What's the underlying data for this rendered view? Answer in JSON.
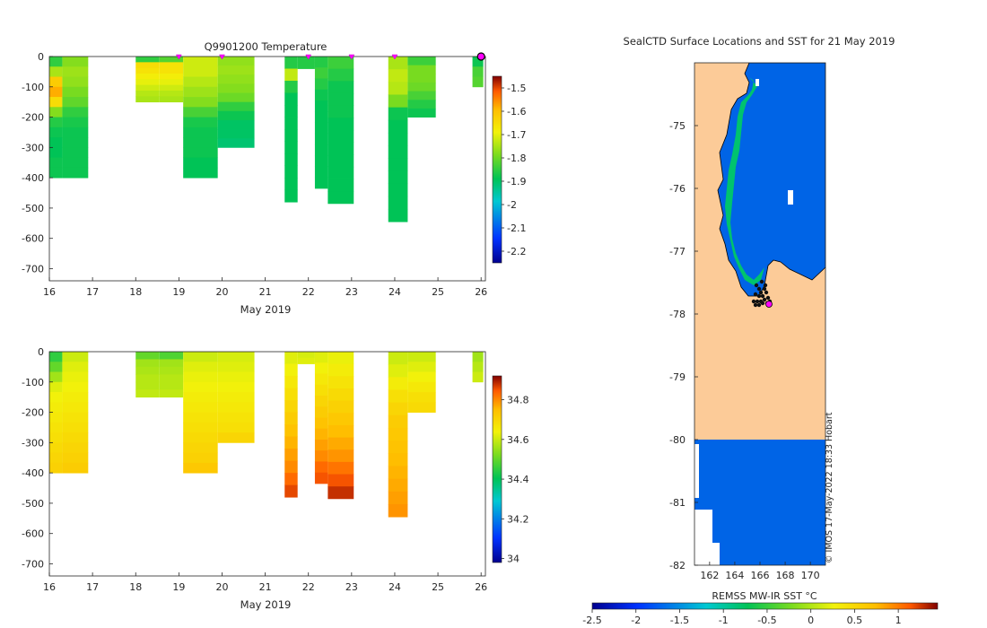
{
  "chart_data": [
    {
      "type": "heatmap",
      "title": "Q9901200  Temperature",
      "xlabel": "May 2019",
      "ylabel": "",
      "x_ticks": [
        16,
        17,
        18,
        19,
        20,
        21,
        22,
        23,
        24,
        25,
        26
      ],
      "y_ticks": [
        0,
        -100,
        -200,
        -300,
        -400,
        -500,
        -600,
        -700
      ],
      "xlim": [
        16,
        26.1
      ],
      "ylim": [
        -740,
        0
      ],
      "colorbar": {
        "ticks": [
          "-1.5",
          "-1.6",
          "-1.7",
          "-1.8",
          "-1.9",
          "-2",
          "-2.1",
          "-2.2"
        ],
        "range": [
          -2.25,
          -1.45
        ]
      },
      "profile_markers": [
        19,
        20,
        22,
        23,
        24
      ],
      "last_profile_marker": 26,
      "profiles": [
        {
          "x0": 16.0,
          "x1": 16.3,
          "depth": 400,
          "values": [
            -1.85,
            -1.75,
            -1.62,
            -1.58,
            -1.65,
            -1.78,
            -1.86,
            -1.88,
            -1.89,
            -1.89,
            -1.88,
            -1.88
          ]
        },
        {
          "x0": 16.3,
          "x1": 16.9,
          "depth": 400,
          "values": [
            -1.78,
            -1.76,
            -1.77,
            -1.79,
            -1.81,
            -1.85,
            -1.87,
            -1.88,
            -1.88,
            -1.88,
            -1.88,
            -1.88
          ]
        },
        {
          "x0": 18.0,
          "x1": 18.55,
          "depth": 150,
          "values": [
            -1.85,
            -1.65,
            -1.66,
            -1.68,
            -1.7,
            -1.72,
            -1.74,
            -1.75
          ]
        },
        {
          "x0": 18.55,
          "x1": 19.1,
          "depth": 150,
          "values": [
            -1.82,
            -1.66,
            -1.66,
            -1.68,
            -1.7,
            -1.72,
            -1.74,
            -1.75
          ]
        },
        {
          "x0": 19.1,
          "x1": 19.9,
          "depth": 400,
          "values": [
            -1.72,
            -1.72,
            -1.74,
            -1.76,
            -1.78,
            -1.83,
            -1.87,
            -1.88,
            -1.88,
            -1.88,
            -1.89,
            -1.89
          ]
        },
        {
          "x0": 19.9,
          "x1": 20.75,
          "depth": 300,
          "values": [
            -1.77,
            -1.76,
            -1.77,
            -1.78,
            -1.8,
            -1.85,
            -1.88,
            -1.9,
            -1.9,
            -1.91
          ]
        },
        {
          "x0": 21.45,
          "x1": 21.75,
          "depth": 480,
          "values": [
            -1.86,
            -1.73,
            -1.86,
            -1.89,
            -1.89,
            -1.89,
            -1.89,
            -1.89,
            -1.89,
            -1.89,
            -1.89,
            -1.89
          ]
        },
        {
          "x0": 21.75,
          "x1": 22.15,
          "depth": 40,
          "values": [
            -1.86,
            -1.86
          ]
        },
        {
          "x0": 22.15,
          "x1": 22.45,
          "depth": 435,
          "values": [
            -1.86,
            -1.84,
            -1.86,
            -1.88,
            -1.89,
            -1.89,
            -1.89,
            -1.89,
            -1.89,
            -1.89,
            -1.89,
            -1.89
          ]
        },
        {
          "x0": 22.45,
          "x1": 23.05,
          "depth": 485,
          "values": [
            -1.84,
            -1.86,
            -1.88,
            -1.88,
            -1.88,
            -1.89,
            -1.89,
            -1.89,
            -1.89,
            -1.89,
            -1.89,
            -1.89
          ]
        },
        {
          "x0": 23.85,
          "x1": 24.3,
          "depth": 545,
          "values": [
            -1.75,
            -1.73,
            -1.74,
            -1.79,
            -1.88,
            -1.89,
            -1.89,
            -1.89,
            -1.89,
            -1.89,
            -1.89,
            -1.89,
            -1.89
          ]
        },
        {
          "x0": 24.3,
          "x1": 24.95,
          "depth": 200,
          "values": [
            -1.84,
            -1.79,
            -1.79,
            -1.8,
            -1.83,
            -1.86,
            -1.88
          ]
        },
        {
          "x0": 25.8,
          "x1": 26.05,
          "depth": 100,
          "values": [
            -1.88,
            -1.83,
            -1.82
          ]
        }
      ]
    },
    {
      "type": "heatmap",
      "title": "",
      "xlabel": "May 2019",
      "ylabel": "",
      "x_ticks": [
        16,
        17,
        18,
        19,
        20,
        21,
        22,
        23,
        24,
        25,
        26
      ],
      "y_ticks": [
        0,
        -100,
        -200,
        -300,
        -400,
        -500,
        -600,
        -700
      ],
      "xlim": [
        16,
        26.1
      ],
      "ylim": [
        -740,
        0
      ],
      "colorbar": {
        "ticks": [
          "34.8",
          "34.6",
          "34.4",
          "34.2",
          "34"
        ],
        "range": [
          33.98,
          34.92
        ]
      },
      "profiles": [
        {
          "x0": 16.0,
          "x1": 16.3,
          "depth": 400,
          "values": [
            34.45,
            34.5,
            34.56,
            34.62,
            34.64,
            34.65,
            34.66,
            34.67,
            34.68,
            34.69,
            34.7,
            34.71
          ]
        },
        {
          "x0": 16.3,
          "x1": 16.9,
          "depth": 400,
          "values": [
            34.6,
            34.62,
            34.63,
            34.64,
            34.65,
            34.66,
            34.67,
            34.68,
            34.69,
            34.7,
            34.71,
            34.72
          ]
        },
        {
          "x0": 18.0,
          "x1": 18.55,
          "depth": 150,
          "values": [
            34.5,
            34.56,
            34.57,
            34.58,
            34.58,
            34.59
          ]
        },
        {
          "x0": 18.55,
          "x1": 19.1,
          "depth": 150,
          "values": [
            34.48,
            34.56,
            34.57,
            34.58,
            34.58,
            34.59
          ]
        },
        {
          "x0": 19.1,
          "x1": 19.9,
          "depth": 400,
          "values": [
            34.6,
            34.62,
            34.63,
            34.64,
            34.65,
            34.66,
            34.67,
            34.68,
            34.69,
            34.7,
            34.71,
            34.73
          ]
        },
        {
          "x0": 19.9,
          "x1": 20.75,
          "depth": 300,
          "values": [
            34.61,
            34.62,
            34.63,
            34.64,
            34.65,
            34.66,
            34.67,
            34.68,
            34.7
          ]
        },
        {
          "x0": 21.45,
          "x1": 21.75,
          "depth": 480,
          "values": [
            34.62,
            34.64,
            34.66,
            34.68,
            34.7,
            34.72,
            34.74,
            34.76,
            34.78,
            34.8,
            34.83,
            34.86
          ]
        },
        {
          "x0": 21.75,
          "x1": 22.15,
          "depth": 40,
          "values": [
            34.61,
            34.62
          ]
        },
        {
          "x0": 22.15,
          "x1": 22.45,
          "depth": 435,
          "values": [
            34.62,
            34.64,
            34.66,
            34.68,
            34.7,
            34.72,
            34.74,
            34.76,
            34.78,
            34.8,
            34.83,
            34.85
          ]
        },
        {
          "x0": 22.45,
          "x1": 23.05,
          "depth": 485,
          "values": [
            34.63,
            34.65,
            34.67,
            34.69,
            34.71,
            34.73,
            34.75,
            34.77,
            34.79,
            34.82,
            34.85,
            34.88
          ]
        },
        {
          "x0": 23.85,
          "x1": 24.3,
          "depth": 545,
          "values": [
            34.6,
            34.62,
            34.65,
            34.68,
            34.7,
            34.72,
            34.73,
            34.74,
            34.75,
            34.76,
            34.77,
            34.78,
            34.79
          ]
        },
        {
          "x0": 24.3,
          "x1": 24.95,
          "depth": 200,
          "values": [
            34.6,
            34.62,
            34.64,
            34.66,
            34.68,
            34.69
          ]
        },
        {
          "x0": 25.8,
          "x1": 26.05,
          "depth": 100,
          "values": [
            34.56,
            34.58,
            34.6
          ]
        }
      ]
    },
    {
      "type": "heatmap",
      "title": "SealCTD Surface Locations and SST for 21 May 2019",
      "xlabel": "",
      "ylabel": "",
      "x_ticks": [
        "162",
        "164",
        "166",
        "168",
        "170"
      ],
      "y_ticks": [
        "-75",
        "-76",
        "-77",
        "-78",
        "-79",
        "-80",
        "-81",
        "-82"
      ],
      "colorbar": {
        "label": "REMSS MW-IR SST °C",
        "ticks": [
          "-2.5",
          "-2",
          "-1.5",
          "-1",
          "-0.5",
          "0",
          "0.5",
          "1"
        ],
        "range": [
          -2.5,
          1.45
        ]
      },
      "regions": [
        {
          "name": "land",
          "color": "#fccb98"
        },
        {
          "name": "sea-ice-sst",
          "value": -2.0,
          "color": "#0064e6"
        },
        {
          "name": "coastal-sst",
          "value": -1.0,
          "color": "#00c36e"
        }
      ],
      "credit": "© IMOS 17-May-2022 18:33 Hobart"
    }
  ]
}
